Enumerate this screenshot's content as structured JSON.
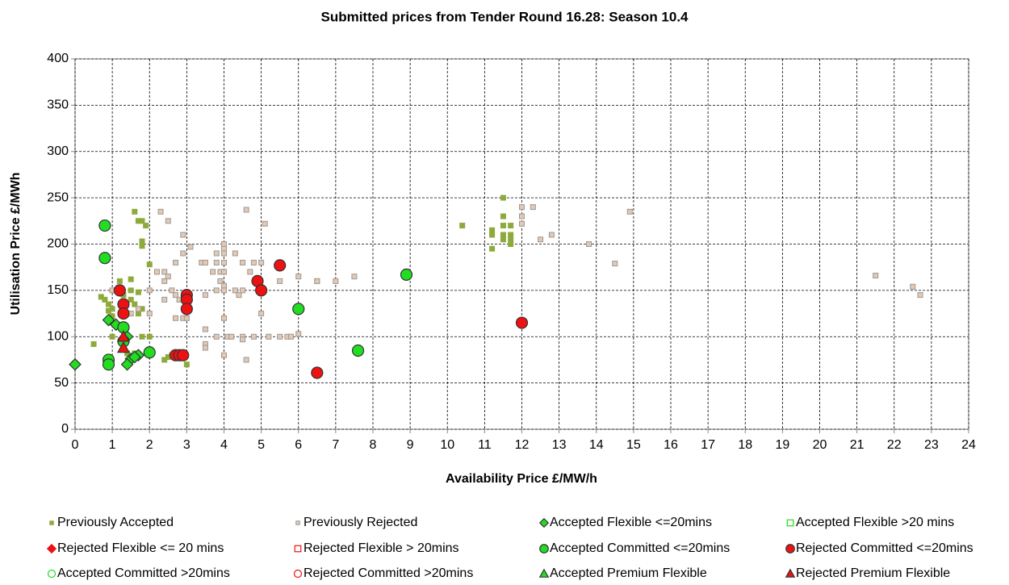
{
  "chart_data": {
    "type": "scatter",
    "title": "Submitted prices from Tender Round 16.28: Season 10.4",
    "x_label": "Availability Price £/MW/h",
    "y_label": "Utilisation Price £/MWh",
    "xlim": [
      0,
      24
    ],
    "xticks": [
      0,
      1,
      2,
      3,
      4,
      5,
      6,
      7,
      8,
      9,
      10,
      11,
      12,
      13,
      14,
      15,
      16,
      17,
      18,
      19,
      20,
      21,
      22,
      23,
      24
    ],
    "ylim": [
      0,
      400
    ],
    "yticks": [
      0,
      50,
      100,
      150,
      200,
      250,
      300,
      350,
      400
    ],
    "grid": true,
    "legend": "bottom",
    "series": [
      {
        "name": "Previously Accepted",
        "color": "#8faa3c",
        "edge": "#8faa3c",
        "marker": "small-square",
        "x": [
          0.5,
          0.7,
          0.8,
          0.9,
          0.9,
          1.0,
          1.0,
          1.0,
          1.1,
          1.2,
          1.3,
          1.4,
          1.5,
          1.5,
          1.5,
          1.6,
          1.6,
          1.7,
          1.7,
          1.7,
          1.8,
          1.8,
          1.8,
          1.8,
          1.8,
          1.9,
          2.0,
          2.0,
          2.4,
          2.5,
          2.8,
          3.0,
          6.5,
          10.4,
          11.2,
          11.2,
          11.2,
          11.5,
          11.5,
          11.5,
          11.5,
          11.5,
          11.7,
          11.7,
          11.7,
          11.7,
          1.6,
          1.4,
          2.6
        ],
        "values": [
          92,
          143,
          140,
          135,
          128,
          122,
          130,
          100,
          150,
          160,
          145,
          125,
          162,
          150,
          140,
          235,
          135,
          148,
          125,
          225,
          203,
          198,
          225,
          130,
          100,
          220,
          178,
          100,
          75,
          78,
          82,
          70,
          160,
          220,
          215,
          210,
          195,
          250,
          230,
          220,
          210,
          205,
          220,
          210,
          205,
          200,
          82,
          82,
          80
        ]
      },
      {
        "name": "Previously Rejected",
        "color": "#e6c8b0",
        "edge": "#999999",
        "marker": "small-square",
        "x": [
          1.0,
          1.5,
          1.7,
          2.0,
          2.0,
          2.2,
          2.3,
          2.4,
          2.4,
          2.4,
          2.5,
          2.5,
          2.6,
          2.7,
          2.7,
          2.7,
          2.8,
          2.9,
          2.9,
          2.9,
          3.0,
          3.0,
          3.1,
          3.4,
          3.5,
          3.5,
          3.5,
          3.5,
          3.5,
          3.7,
          3.8,
          3.8,
          3.8,
          3.8,
          3.9,
          3.9,
          4.0,
          4.0,
          4.0,
          4.0,
          4.0,
          4.0,
          4.0,
          4.0,
          4.0,
          4.1,
          4.2,
          4.3,
          4.3,
          4.4,
          4.5,
          4.5,
          4.5,
          4.5,
          4.6,
          4.6,
          4.7,
          4.8,
          4.8,
          5.0,
          5.0,
          5.1,
          5.2,
          5.5,
          5.5,
          5.7,
          5.8,
          6.0,
          6.0,
          6.5,
          7.0,
          7.5,
          12.0,
          12.0,
          12.0,
          12.3,
          12.5,
          12.8,
          13.8,
          14.5,
          14.9,
          21.5,
          22.5,
          22.7
        ],
        "values": [
          150,
          125,
          130,
          150,
          125,
          170,
          235,
          140,
          160,
          170,
          225,
          165,
          150,
          180,
          145,
          120,
          140,
          120,
          210,
          190,
          120,
          145,
          197,
          180,
          180,
          145,
          108,
          92,
          88,
          170,
          190,
          180,
          150,
          100,
          170,
          160,
          200,
          195,
          190,
          180,
          170,
          155,
          150,
          120,
          80,
          100,
          100,
          190,
          150,
          145,
          180,
          150,
          100,
          97,
          237,
          75,
          170,
          180,
          100,
          180,
          125,
          222,
          100,
          160,
          100,
          100,
          100,
          165,
          103,
          160,
          160,
          165,
          240,
          230,
          222,
          240,
          205,
          210,
          200,
          179,
          235,
          166,
          154,
          145
        ]
      },
      {
        "name": "Accepted Flexible <=20mins",
        "color": "#22dd22",
        "edge": "#333333",
        "marker": "diamond",
        "x": [
          0.0,
          0.9,
          1.1,
          1.4,
          1.7,
          1.5,
          1.4,
          1.6
        ],
        "values": [
          70,
          118,
          113,
          100,
          80,
          76,
          70,
          78
        ]
      },
      {
        "name": "Accepted Flexible >20 mins",
        "color": "#22dd22",
        "edge": "#22dd22",
        "marker": "open-square",
        "x": [],
        "values": []
      },
      {
        "name": "Rejected Flexible <= 20 mins",
        "color": "#ee1111",
        "edge": "#ee1111",
        "marker": "diamond",
        "x": [],
        "values": []
      },
      {
        "name": "Rejected Flexible > 20mins",
        "color": "#ee1111",
        "edge": "#ee1111",
        "marker": "open-square",
        "x": [],
        "values": []
      },
      {
        "name": "Accepted Committed <=20mins",
        "color": "#22dd22",
        "edge": "#333333",
        "marker": "circle",
        "x": [
          0.8,
          0.8,
          0.9,
          0.9,
          1.3,
          1.3,
          2.0,
          6.0,
          7.6,
          8.9
        ],
        "values": [
          220,
          185,
          75,
          70,
          110,
          95,
          83,
          130,
          85,
          167
        ]
      },
      {
        "name": "Rejected Committed <=20mins",
        "color": "#ee1111",
        "edge": "#333333",
        "marker": "circle",
        "x": [
          1.2,
          1.3,
          1.3,
          2.7,
          2.8,
          2.9,
          3.0,
          3.0,
          3.0,
          4.9,
          5.0,
          5.5,
          6.5,
          12.0
        ],
        "values": [
          150,
          135,
          125,
          80,
          80,
          80,
          145,
          140,
          130,
          160,
          150,
          177,
          61,
          115
        ]
      },
      {
        "name": "Accepted Committed >20mins",
        "color": "#22dd22",
        "edge": "#22dd22",
        "marker": "open-circle",
        "x": [],
        "values": []
      },
      {
        "name": "Rejected Committed >20mins",
        "color": "#ee1111",
        "edge": "#ee1111",
        "marker": "open-circle",
        "x": [],
        "values": []
      },
      {
        "name": "Accepted Premium Flexible",
        "color": "#22dd22",
        "edge": "#333333",
        "marker": "triangle",
        "x": [],
        "values": []
      },
      {
        "name": "Rejected Premium Flexible",
        "color": "#ee1111",
        "edge": "#333333",
        "marker": "triangle",
        "x": [
          1.3,
          1.3
        ],
        "values": [
          100,
          88
        ]
      }
    ]
  }
}
